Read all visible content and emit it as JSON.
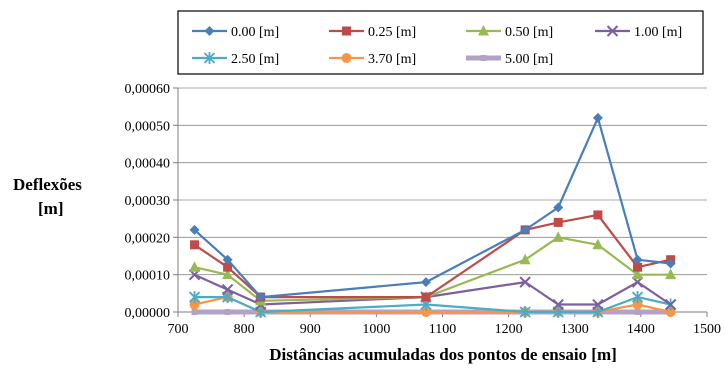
{
  "chart_data": {
    "type": "line",
    "xlabel": "Distâncias acumuladas dos pontos de ensaio [m]",
    "ylabel_lines": [
      "Deflexões",
      "[m]"
    ],
    "xlim": [
      700,
      1500
    ],
    "ylim": [
      0,
      0.0006
    ],
    "x_ticks": [
      "700",
      "800",
      "900",
      "1000",
      "1100",
      "1200",
      "1300",
      "1400",
      "1500"
    ],
    "y_ticks": [
      "0,00000",
      "0,00010",
      "0,00020",
      "0,00030",
      "0,00040",
      "0,00050",
      "0,00060"
    ],
    "grid": "horizontal",
    "legend_position": "top",
    "x": [
      725,
      775,
      825,
      1075,
      1225,
      1275,
      1335,
      1395,
      1445
    ],
    "series": [
      {
        "name": "0.00 [m]",
        "color": "#4a7ebb",
        "marker": "diamond",
        "values": [
          0.00022,
          0.00014,
          4e-05,
          8e-05,
          0.00022,
          0.00028,
          0.00052,
          0.00014,
          0.00013
        ]
      },
      {
        "name": "0.25 [m]",
        "color": "#be4b48",
        "marker": "square",
        "values": [
          0.00018,
          0.00012,
          4e-05,
          4e-05,
          0.00022,
          0.00024,
          0.00026,
          0.00012,
          0.00014
        ]
      },
      {
        "name": "0.50 [m]",
        "color": "#98b954",
        "marker": "triangle",
        "values": [
          0.00012,
          0.0001,
          3e-05,
          4e-05,
          0.00014,
          0.0002,
          0.00018,
          0.0001,
          0.0001
        ]
      },
      {
        "name": "1.00 [m]",
        "color": "#7d5fa0",
        "marker": "x",
        "values": [
          0.0001,
          6e-05,
          2e-05,
          4e-05,
          8e-05,
          2e-05,
          2e-05,
          8e-05,
          2e-05
        ]
      },
      {
        "name": "2.50  [m]",
        "color": "#4bacc6",
        "marker": "star",
        "values": [
          4e-05,
          4e-05,
          0.0,
          2e-05,
          0.0,
          0.0,
          0.0,
          4e-05,
          2e-05
        ]
      },
      {
        "name": "3.70 [m]",
        "color": "#f79646",
        "marker": "circle",
        "values": [
          2e-05,
          4e-05,
          0.0,
          0.0,
          0.0,
          0.0,
          0.0,
          2e-05,
          0.0
        ]
      },
      {
        "name": "5.00 [m]",
        "color": "#b3a2c7",
        "marker": "thick",
        "values": [
          0.0,
          0.0,
          0.0,
          0.0,
          0.0,
          0.0,
          0.0,
          0.0,
          0.0
        ]
      }
    ]
  }
}
